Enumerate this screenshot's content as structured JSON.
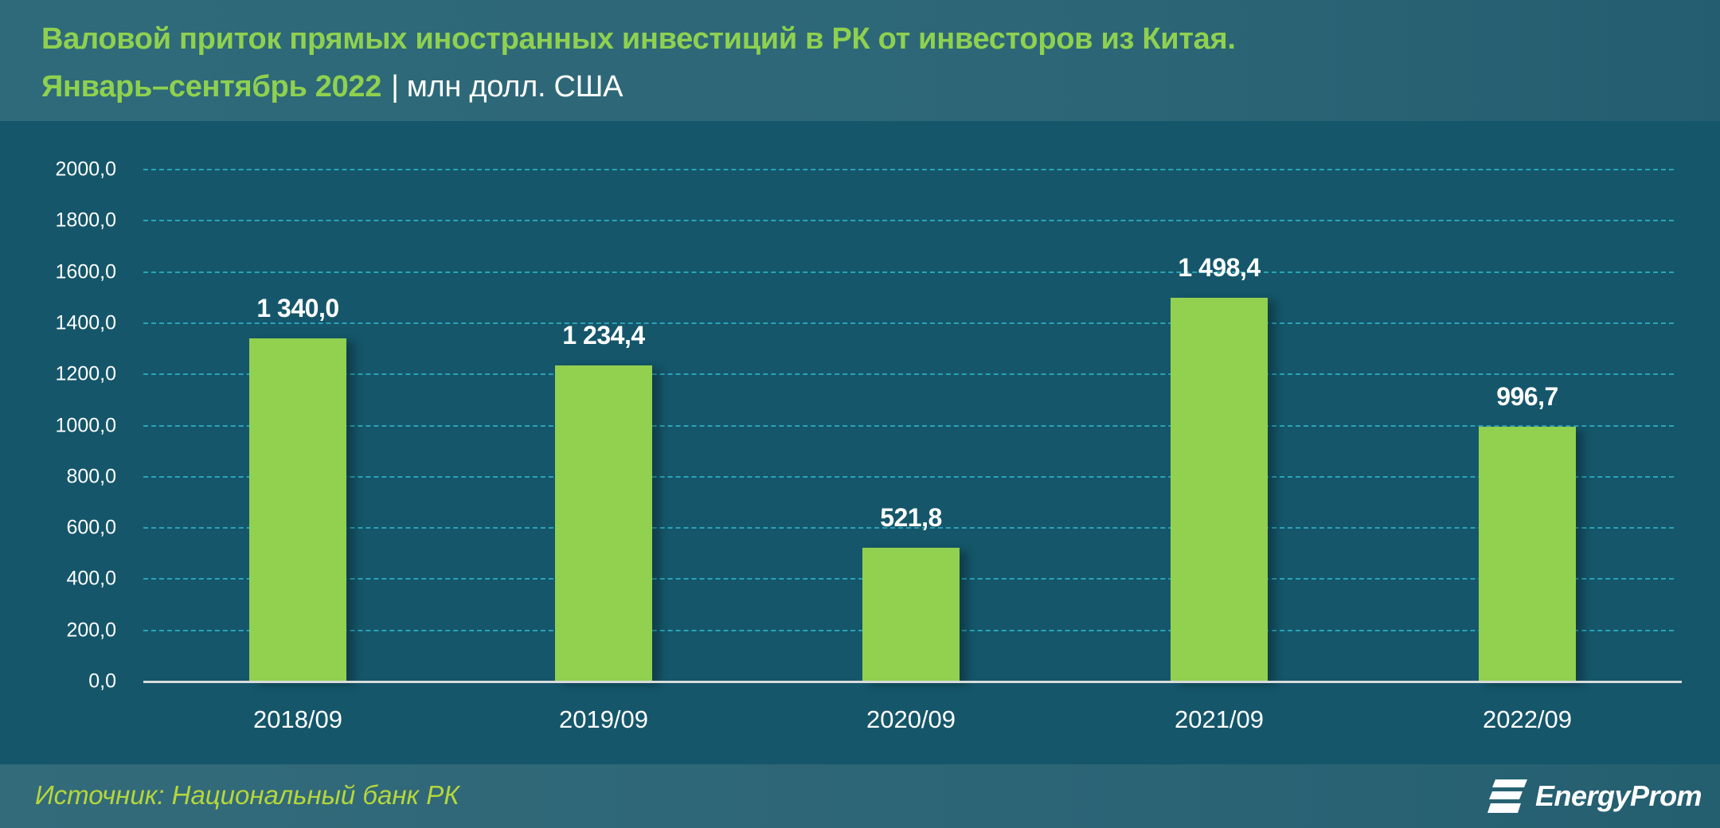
{
  "header": {
    "title_line1": "Валовой приток прямых иностранных инвестиций в РК от инвесторов из Китая.",
    "title_line2_period": "Январь–сентябрь 2022",
    "title_separator": "|",
    "title_unit": "млн долл. США"
  },
  "footer": {
    "source": "Источник: Национальный банк РК",
    "logo_text": "EnergyProm",
    "logo_icon": "energyprom-logo-icon"
  },
  "colors": {
    "bar": "#92d050",
    "title": "#8fd14f",
    "plot_bg": "#15566a",
    "header_bg": "#2f6a7a",
    "gridline": "#2aa3b8",
    "source_text": "#b6d63a"
  },
  "y_ticks": [
    "0,0",
    "200,0",
    "400,0",
    "600,0",
    "800,0",
    "1000,0",
    "1200,0",
    "1400,0",
    "1600,0",
    "1800,0",
    "2000,0"
  ],
  "bars": [
    {
      "category": "2018/09",
      "value": 1340.0,
      "label": "1 340,0"
    },
    {
      "category": "2019/09",
      "value": 1234.4,
      "label": "1 234,4"
    },
    {
      "category": "2020/09",
      "value": 521.8,
      "label": "521,8"
    },
    {
      "category": "2021/09",
      "value": 1498.4,
      "label": "1 498,4"
    },
    {
      "category": "2022/09",
      "value": 996.7,
      "label": "996,7"
    }
  ],
  "chart_data": {
    "type": "bar",
    "title": "Валовой приток прямых иностранных инвестиций в РК от инвесторов из Китая. Январь–сентябрь 2022 | млн долл. США",
    "categories": [
      "2018/09",
      "2019/09",
      "2020/09",
      "2021/09",
      "2022/09"
    ],
    "values": [
      1340.0,
      1234.4,
      521.8,
      1498.4,
      996.7
    ],
    "data_labels": [
      "1 340,0",
      "1 234,4",
      "521,8",
      "1 498,4",
      "996,7"
    ],
    "xlabel": "",
    "ylabel": "млн долл. США",
    "ylim": [
      0,
      2000
    ],
    "y_tick_step": 200,
    "grid": true,
    "grid_style": "dashed horizontal",
    "legend": "none",
    "source": "Источник: Национальный банк РК"
  }
}
